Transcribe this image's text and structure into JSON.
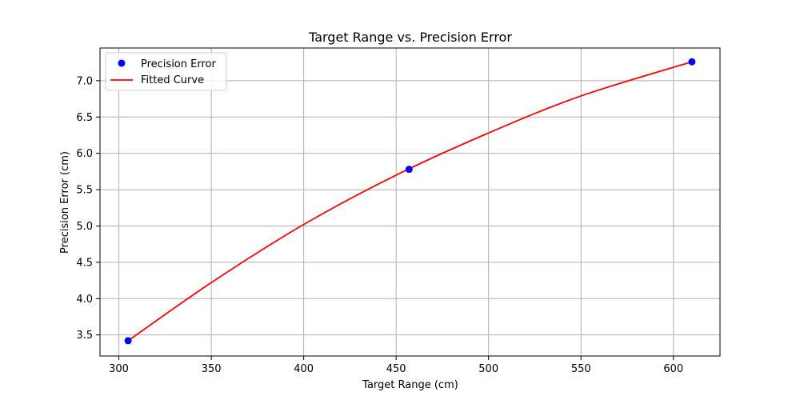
{
  "chart_data": {
    "type": "scatter",
    "title": "Target Range vs. Precision Error",
    "xlabel": "Target Range (cm)",
    "ylabel": "Precision Error (cm)",
    "xlim": [
      289.8,
      625.2
    ],
    "ylim": [
      3.21,
      7.45
    ],
    "x_ticks": [
      300,
      350,
      400,
      450,
      500,
      550,
      600
    ],
    "x_tick_labels": [
      "300",
      "350",
      "400",
      "450",
      "500",
      "550",
      "600"
    ],
    "y_ticks": [
      3.5,
      4.0,
      4.5,
      5.0,
      5.5,
      6.0,
      6.5,
      7.0
    ],
    "y_tick_labels": [
      "3.5",
      "4.0",
      "4.5",
      "5.0",
      "5.5",
      "6.0",
      "6.5",
      "7.0"
    ],
    "grid": true,
    "legend_position": "top-left",
    "series": [
      {
        "name": "Precision Error",
        "kind": "scatter",
        "color": "#0000ff",
        "x": [
          305,
          457,
          610
        ],
        "y": [
          3.42,
          5.78,
          7.26
        ]
      },
      {
        "name": "Fitted Curve",
        "kind": "line",
        "color": "#ff0000",
        "x": [
          305,
          350,
          400,
          450,
          500,
          550,
          610
        ],
        "y": [
          3.42,
          4.22,
          5.02,
          5.7,
          6.28,
          6.79,
          7.26
        ]
      }
    ]
  }
}
